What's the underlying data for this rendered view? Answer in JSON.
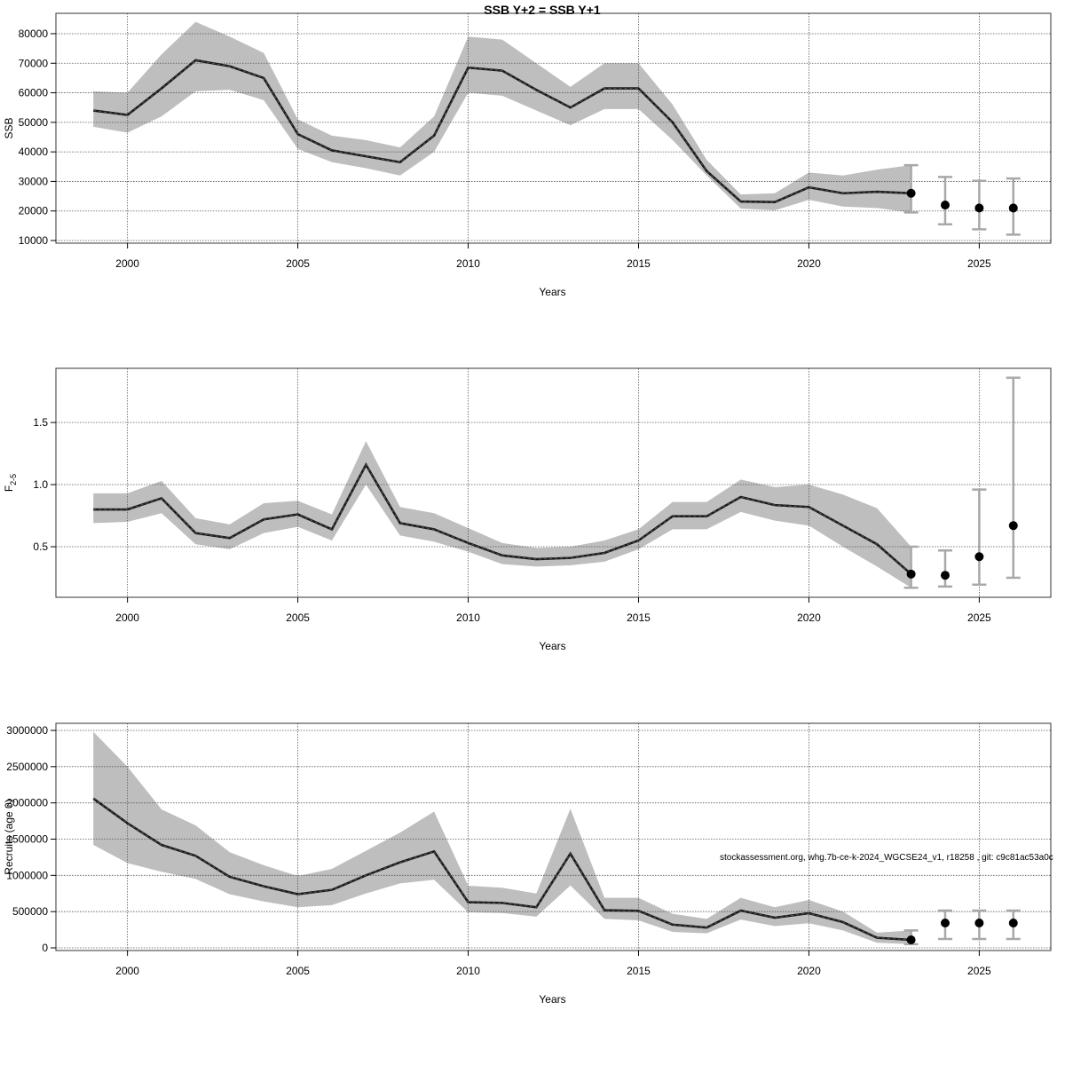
{
  "title": "SSB Y+2 = SSB Y+1",
  "watermark": "stockassessment.org, whg.7b-ce-k-2024_WGCSE24_v1, r18258 , git: c9c81ac53a0c",
  "colors": {
    "band": "#bebebe",
    "line": "#1a1a1a",
    "point": "#000000",
    "errorbar": "#a8a8a8",
    "grid": "#555555"
  },
  "chart_data": [
    {
      "type": "line",
      "ylabel": "SSB",
      "xlabel": "Years",
      "xlim": [
        1997.9,
        2027.1
      ],
      "ylim": [
        9100,
        86900
      ],
      "xticks": [
        2000,
        2005,
        2010,
        2015,
        2020,
        2025
      ],
      "yticks": [
        10000,
        20000,
        30000,
        40000,
        50000,
        60000,
        70000,
        80000
      ],
      "ytick_labels": [
        "10000",
        "20000",
        "30000",
        "40000",
        "50000",
        "60000",
        "70000",
        "80000"
      ],
      "grid": true,
      "x": [
        1999,
        2000,
        2001,
        2002,
        2003,
        2004,
        2005,
        2006,
        2007,
        2008,
        2009,
        2010,
        2011,
        2012,
        2013,
        2014,
        2015,
        2016,
        2017,
        2018,
        2019,
        2020,
        2021,
        2022,
        2023
      ],
      "estimate": [
        54000,
        52500,
        61500,
        71000,
        69000,
        65000,
        46000,
        40500,
        38500,
        36500,
        45500,
        68500,
        67500,
        61000,
        55000,
        61500,
        61500,
        50000,
        33500,
        23200,
        23000,
        28000,
        26000,
        26500,
        26000
      ],
      "lower": [
        48500,
        46500,
        52000,
        60500,
        61000,
        57500,
        41000,
        36500,
        34500,
        32000,
        40000,
        60000,
        59000,
        54000,
        49000,
        54500,
        54500,
        44000,
        32000,
        20800,
        20200,
        23800,
        21500,
        21000,
        19500
      ],
      "upper": [
        60500,
        60000,
        73000,
        84000,
        79000,
        73500,
        51000,
        45500,
        44000,
        41500,
        52000,
        79000,
        78000,
        70000,
        62000,
        70000,
        70000,
        56000,
        37300,
        25600,
        26000,
        33000,
        32000,
        34000,
        35500
      ],
      "forecast": {
        "x": [
          2023,
          2024,
          2025,
          2026
        ],
        "estimate": [
          26000,
          22000,
          21000,
          21000
        ],
        "lower": [
          19500,
          15500,
          13800,
          12000
        ],
        "upper": [
          35500,
          31500,
          30200,
          31000
        ]
      }
    },
    {
      "type": "line",
      "ylabel": "F",
      "ylabel_sub": "2-5",
      "xlabel": "Years",
      "xlim": [
        1997.9,
        2027.1
      ],
      "ylim": [
        0.093,
        1.936
      ],
      "xticks": [
        2000,
        2005,
        2010,
        2015,
        2020,
        2025
      ],
      "yticks": [
        0.5,
        1.0,
        1.5
      ],
      "ytick_labels": [
        "0.5",
        "1.0",
        "1.5"
      ],
      "grid": true,
      "x": [
        1999,
        2000,
        2001,
        2002,
        2003,
        2004,
        2005,
        2006,
        2007,
        2008,
        2009,
        2010,
        2011,
        2012,
        2013,
        2014,
        2015,
        2016,
        2017,
        2018,
        2019,
        2020,
        2021,
        2022,
        2023
      ],
      "estimate": [
        0.8,
        0.8,
        0.89,
        0.61,
        0.57,
        0.72,
        0.76,
        0.64,
        1.16,
        0.69,
        0.64,
        0.53,
        0.43,
        0.4,
        0.41,
        0.45,
        0.55,
        0.745,
        0.745,
        0.9,
        0.835,
        0.82,
        0.67,
        0.52,
        0.28
      ],
      "lower": [
        0.69,
        0.7,
        0.77,
        0.52,
        0.48,
        0.61,
        0.66,
        0.55,
        1.0,
        0.59,
        0.54,
        0.46,
        0.36,
        0.34,
        0.35,
        0.38,
        0.48,
        0.64,
        0.64,
        0.78,
        0.71,
        0.67,
        0.5,
        0.34,
        0.17
      ],
      "upper": [
        0.93,
        0.93,
        1.03,
        0.73,
        0.68,
        0.85,
        0.87,
        0.76,
        1.35,
        0.82,
        0.77,
        0.65,
        0.53,
        0.49,
        0.5,
        0.55,
        0.64,
        0.86,
        0.86,
        1.04,
        0.98,
        1.0,
        0.92,
        0.81,
        0.5
      ],
      "forecast": {
        "x": [
          2023,
          2024,
          2025,
          2026
        ],
        "estimate": [
          0.28,
          0.27,
          0.42,
          0.67
        ],
        "lower": [
          0.17,
          0.18,
          0.195,
          0.25
        ],
        "upper": [
          0.5,
          0.47,
          0.96,
          1.86
        ]
      }
    },
    {
      "type": "line",
      "ylabel": "Recruits (age 0)",
      "xlabel": "Years",
      "xlim": [
        1997.9,
        2027.1
      ],
      "ylim": [
        -36700,
        3098000
      ],
      "xticks": [
        2000,
        2005,
        2010,
        2015,
        2020,
        2025
      ],
      "yticks": [
        0,
        500000,
        1000000,
        1500000,
        2000000,
        2500000,
        3000000
      ],
      "ytick_labels": [
        "0",
        "500000",
        "1000000",
        "1500000",
        "2000000",
        "2500000",
        "3000000"
      ],
      "grid": true,
      "x": [
        1999,
        2000,
        2001,
        2002,
        2003,
        2004,
        2005,
        2006,
        2007,
        2008,
        2009,
        2010,
        2011,
        2012,
        2013,
        2014,
        2015,
        2016,
        2017,
        2018,
        2019,
        2020,
        2021,
        2022,
        2023
      ],
      "estimate": [
        2060000,
        1720000,
        1420000,
        1270000,
        980000,
        850000,
        740000,
        800000,
        1000000,
        1180000,
        1330000,
        630000,
        620000,
        560000,
        1300000,
        520000,
        510000,
        320000,
        280000,
        514000,
        416000,
        478000,
        355000,
        139000,
        110000
      ],
      "lower": [
        1420000,
        1170000,
        1050000,
        950000,
        740000,
        640000,
        560000,
        590000,
        750000,
        890000,
        940000,
        490000,
        480000,
        430000,
        860000,
        400000,
        380000,
        220000,
        200000,
        390000,
        300000,
        340000,
        240000,
        70000,
        50000
      ],
      "upper": [
        2980000,
        2500000,
        1910000,
        1690000,
        1320000,
        1140000,
        990000,
        1090000,
        1340000,
        1590000,
        1880000,
        857000,
        830000,
        750000,
        1920000,
        690000,
        690000,
        470000,
        400000,
        690000,
        560000,
        661000,
        500000,
        210000,
        240000
      ],
      "forecast": {
        "x": [
          2023,
          2024,
          2025,
          2026
        ],
        "estimate": [
          110000,
          343000,
          343000,
          343000
        ],
        "lower": [
          50000,
          122000,
          122000,
          122000
        ],
        "upper": [
          240000,
          514000,
          514000,
          514000
        ]
      }
    }
  ]
}
